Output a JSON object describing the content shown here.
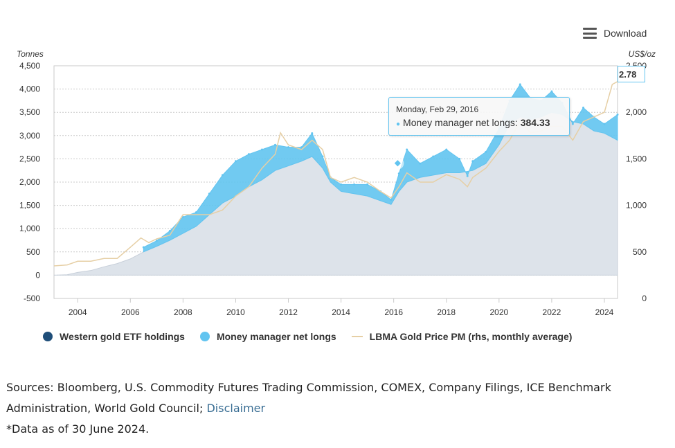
{
  "toolbar": {
    "download_label": "Download",
    "menu_icon": "hamburger-menu-icon"
  },
  "tooltip": {
    "date": "Monday, Feb 29, 2016",
    "series_label": "Money manager net longs: ",
    "value": "384.33"
  },
  "cut_label": "2.78",
  "sources": {
    "text": "Sources: Bloomberg, U.S. Commodity Futures Trading Commission, COMEX, Company Filings, ICE Benchmark Administration, World Gold Council; ",
    "link": "Disclaimer",
    "note": "*Data as of 30 June 2024."
  },
  "colors": {
    "etf_fill": "#dde3ea",
    "etf_legend": "#1f4e79",
    "mm": "#62c4f0",
    "price": "#e6cfa5",
    "grid": "#c9c9c9",
    "axis_text": "#333333"
  },
  "chart_data": {
    "type": "area",
    "ylabel_left": "Tonnes",
    "ylabel_right": "US$/oz",
    "ylim_left": [
      -500,
      4500
    ],
    "ylim_right": [
      0,
      2500
    ],
    "yticks_left": [
      "4,500",
      "4,000",
      "3,500",
      "3,000",
      "2,500",
      "2,000",
      "1,500",
      "1,000",
      "500",
      "0",
      "-500"
    ],
    "yticks_right": [
      "2,500",
      "2,000",
      "1,500",
      "1,000",
      "500",
      "0"
    ],
    "xlim": [
      2003.1,
      2024.5
    ],
    "xticks": [
      "2004",
      "2006",
      "2008",
      "2010",
      "2012",
      "2014",
      "2016",
      "2018",
      "2020",
      "2022",
      "2024"
    ],
    "legend_position": "bottom",
    "series": [
      {
        "name": "Western gold ETF holdings",
        "axis": "left",
        "x": [
          2003.1,
          2003.6,
          2004.0,
          2004.5,
          2005.0,
          2005.5,
          2006.0,
          2006.5,
          2007.0,
          2007.5,
          2008.0,
          2008.5,
          2009.0,
          2009.5,
          2010.0,
          2010.5,
          2011.0,
          2011.5,
          2012.0,
          2012.5,
          2012.9,
          2013.3,
          2013.6,
          2014.0,
          2014.5,
          2015.0,
          2015.5,
          2015.9,
          2016.2,
          2016.5,
          2017.0,
          2017.5,
          2018.0,
          2018.5,
          2019.0,
          2019.5,
          2020.0,
          2020.4,
          2020.8,
          2021.2,
          2021.6,
          2022.0,
          2022.4,
          2022.8,
          2023.2,
          2023.6,
          2024.0,
          2024.5
        ],
        "values": [
          0,
          10,
          60,
          100,
          180,
          250,
          350,
          500,
          620,
          750,
          900,
          1050,
          1300,
          1550,
          1700,
          1900,
          2050,
          2250,
          2350,
          2450,
          2550,
          2300,
          2000,
          1800,
          1750,
          1700,
          1600,
          1520,
          1800,
          2000,
          2100,
          2150,
          2200,
          2200,
          2250,
          2400,
          2800,
          3250,
          3400,
          3350,
          3400,
          3500,
          3450,
          3300,
          3250,
          3100,
          3050,
          2900
        ]
      },
      {
        "name": "Money manager net longs",
        "axis": "left",
        "x": [
          2006.5,
          2007.0,
          2007.5,
          2008.0,
          2008.5,
          2009.0,
          2009.5,
          2010.0,
          2010.5,
          2011.0,
          2011.5,
          2012.0,
          2012.5,
          2012.9,
          2013.3,
          2013.6,
          2014.0,
          2014.5,
          2015.0,
          2015.5,
          2015.9,
          2016.2,
          2016.5,
          2017.0,
          2017.5,
          2018.0,
          2018.5,
          2018.8,
          2019.0,
          2019.5,
          2020.0,
          2020.4,
          2020.8,
          2021.2,
          2021.6,
          2022.0,
          2022.4,
          2022.8,
          2023.2,
          2023.6,
          2024.0,
          2024.5
        ],
        "values": [
          100,
          120,
          200,
          350,
          300,
          450,
          600,
          750,
          700,
          650,
          550,
          400,
          300,
          500,
          250,
          100,
          150,
          200,
          250,
          200,
          100,
          384.33,
          700,
          300,
          400,
          500,
          300,
          -100,
          200,
          250,
          350,
          500,
          700,
          450,
          350,
          450,
          250,
          -50,
          350,
          300,
          200,
          550
        ]
      },
      {
        "name": "LBMA Gold Price PM (rhs, monthly average)",
        "axis": "right",
        "x": [
          2003.1,
          2003.6,
          2004.0,
          2004.5,
          2005.0,
          2005.5,
          2006.0,
          2006.4,
          2006.7,
          2007.0,
          2007.5,
          2008.0,
          2008.5,
          2009.0,
          2009.5,
          2010.0,
          2010.5,
          2011.0,
          2011.5,
          2011.7,
          2012.0,
          2012.5,
          2012.9,
          2013.3,
          2013.6,
          2014.0,
          2014.5,
          2015.0,
          2015.5,
          2015.9,
          2016.2,
          2016.5,
          2017.0,
          2017.5,
          2018.0,
          2018.5,
          2018.8,
          2019.0,
          2019.5,
          2020.0,
          2020.4,
          2020.8,
          2021.2,
          2021.6,
          2022.0,
          2022.4,
          2022.8,
          2023.2,
          2023.6,
          2024.0,
          2024.3,
          2024.5
        ],
        "values": [
          350,
          360,
          400,
          400,
          430,
          430,
          550,
          650,
          600,
          640,
          680,
          900,
          900,
          900,
          950,
          1100,
          1200,
          1400,
          1550,
          1780,
          1650,
          1600,
          1700,
          1600,
          1300,
          1250,
          1300,
          1250,
          1150,
          1080,
          1200,
          1350,
          1250,
          1250,
          1330,
          1280,
          1200,
          1300,
          1400,
          1580,
          1700,
          1900,
          1780,
          1800,
          1850,
          1850,
          1700,
          1900,
          1950,
          2000,
          2300,
          2330
        ]
      }
    ]
  },
  "legend": [
    {
      "label": "Western gold ETF holdings",
      "swatch": "dot",
      "color": "#1f4e79"
    },
    {
      "label": "Money manager net longs",
      "swatch": "dot",
      "color": "#62c4f0"
    },
    {
      "label": "LBMA Gold Price PM (rhs, monthly average)",
      "swatch": "line",
      "color": "#e6cfa5"
    }
  ]
}
